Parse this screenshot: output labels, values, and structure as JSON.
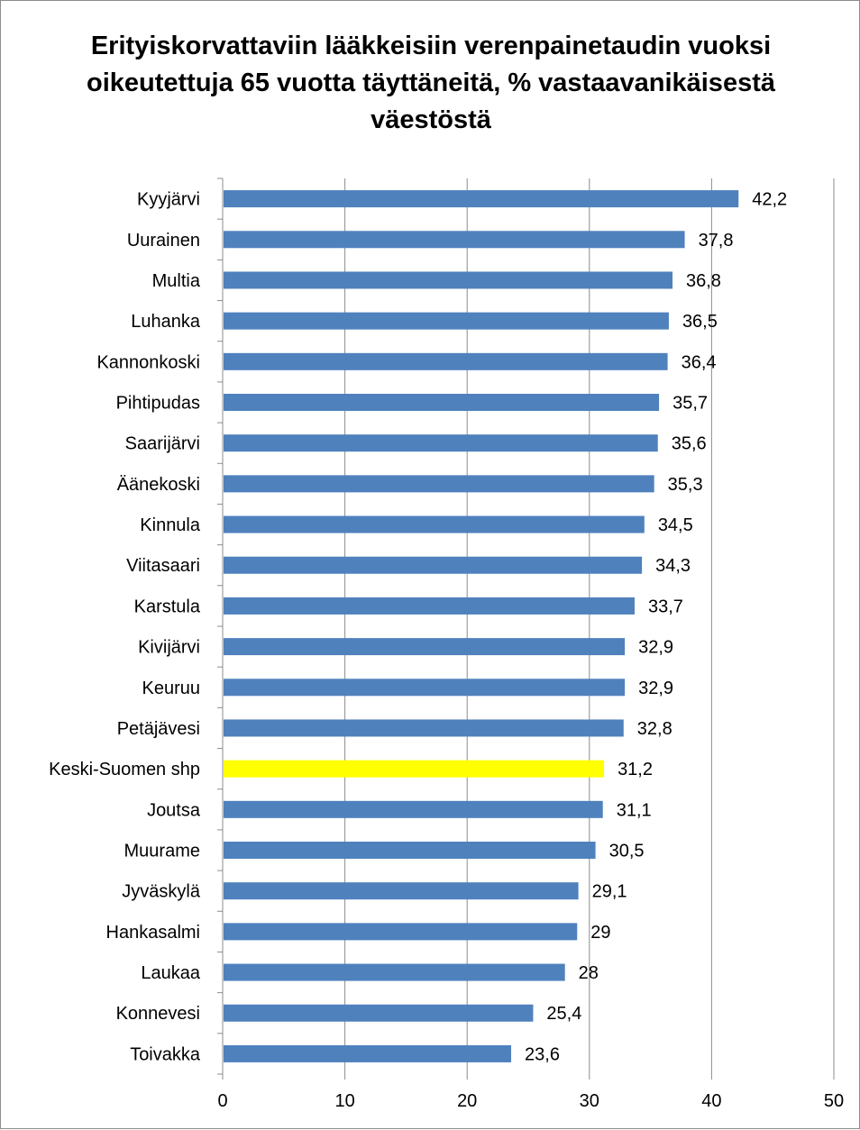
{
  "colors": {
    "bar": "#4f81bd",
    "highlight": "#ffff00",
    "grid": "#8c8c8c",
    "frame": "#8c8c8c"
  },
  "chart_data": {
    "type": "bar",
    "orientation": "horizontal",
    "title": "Erityiskorvattaviin lääkkeisiin verenpainetaudin vuoksi oikeutettuja 65 vuotta täyttäneitä, % vastaavanikäisestä väestöstä",
    "xlabel": "",
    "ylabel": "",
    "xlim": [
      0,
      50
    ],
    "x_ticks": [
      "0",
      "10",
      "20",
      "30",
      "40",
      "50"
    ],
    "grid": "vertical",
    "legend": "none",
    "highlighted_category": "Keski-Suomen shp",
    "categories": [
      "Kyyjärvi",
      "Uurainen",
      "Multia",
      "Luhanka",
      "Kannonkoski",
      "Pihtipudas",
      "Saarijärvi",
      "Äänekoski",
      "Kinnula",
      "Viitasaari",
      "Karstula",
      "Kivijärvi",
      "Keuruu",
      "Petäjävesi",
      "Keski-Suomen shp",
      "Joutsa",
      "Muurame",
      "Jyväskylä",
      "Hankasalmi",
      "Laukaa",
      "Konnevesi",
      "Toivakka"
    ],
    "values": [
      42.2,
      37.8,
      36.8,
      36.5,
      36.4,
      35.7,
      35.6,
      35.3,
      34.5,
      34.3,
      33.7,
      32.9,
      32.9,
      32.8,
      31.2,
      31.1,
      30.5,
      29.1,
      29,
      28,
      25.4,
      23.6
    ],
    "value_labels": [
      "42,2",
      "37,8",
      "36,8",
      "36,5",
      "36,4",
      "35,7",
      "35,6",
      "35,3",
      "34,5",
      "34,3",
      "33,7",
      "32,9",
      "32,9",
      "32,8",
      "31,2",
      "31,1",
      "30,5",
      "29,1",
      "29",
      "28",
      "25,4",
      "23,6"
    ]
  }
}
